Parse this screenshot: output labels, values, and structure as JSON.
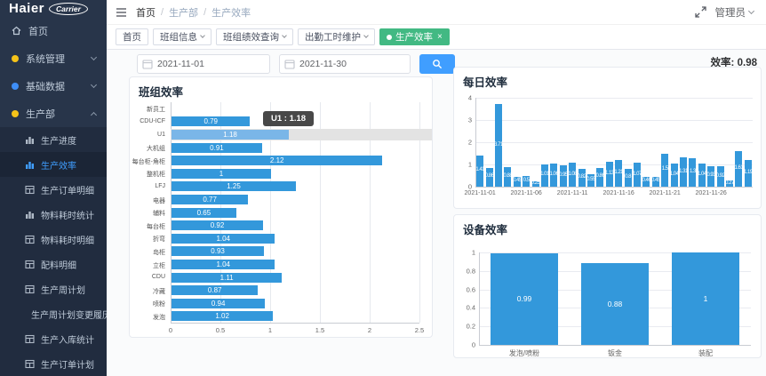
{
  "app": {
    "logo_primary": "Haier",
    "logo_secondary": "Carrier"
  },
  "topbar": {
    "breadcrumb": [
      "首页",
      "生产部",
      "生产效率"
    ],
    "user_label": "管理员"
  },
  "tabs": [
    {
      "key": "home",
      "label": "首页",
      "active": false,
      "caret": false,
      "closable": false
    },
    {
      "key": "team-info",
      "label": "班组信息",
      "active": false,
      "caret": true,
      "closable": false
    },
    {
      "key": "team-performance-query",
      "label": "班组绩效查询",
      "active": false,
      "caret": true,
      "closable": false
    },
    {
      "key": "attendance-hours",
      "label": "出勤工时维护",
      "active": false,
      "caret": true,
      "closable": false
    },
    {
      "key": "production-efficiency",
      "label": "生产效率",
      "active": true,
      "caret": false,
      "closable": true
    }
  ],
  "filters": {
    "date_start": "2021-11-01",
    "date_end": "2021-11-30"
  },
  "summary": {
    "label": "效率:",
    "value": "0.98"
  },
  "sidebar": {
    "items": [
      {
        "key": "home",
        "label": "首页",
        "icon": "home-icon",
        "chevron": null,
        "dot_color": null
      },
      {
        "key": "system-mgmt",
        "label": "系统管理",
        "icon": "system-dot-icon",
        "chevron": "down",
        "dot_color": "#f5c319"
      },
      {
        "key": "basic-data",
        "label": "基础数据",
        "icon": "data-dot-icon",
        "chevron": "down",
        "dot_color": "#3e8ef7"
      },
      {
        "key": "production-dept",
        "label": "生产部",
        "icon": "production-dot-icon",
        "chevron": "up",
        "dot_color": "#f5c319"
      }
    ],
    "subitems": [
      {
        "key": "production-progress",
        "label": "生产进度",
        "icon": "bar-chart-icon",
        "active": false
      },
      {
        "key": "production-efficiency",
        "label": "生产效率",
        "icon": "bar-chart-icon",
        "active": true
      },
      {
        "key": "production-order-detail",
        "label": "生产订单明细",
        "icon": "table-icon",
        "active": false
      },
      {
        "key": "material-time-stats",
        "label": "物料耗时统计",
        "icon": "bar-chart-icon",
        "active": false
      },
      {
        "key": "material-time-detail",
        "label": "物料耗时明细",
        "icon": "table-icon",
        "active": false
      },
      {
        "key": "batching-detail",
        "label": "配料明细",
        "icon": "table-icon",
        "active": false
      },
      {
        "key": "production-week-plan",
        "label": "生产周计划",
        "icon": "table-icon",
        "active": false
      },
      {
        "key": "week-plan-change-history",
        "label": "生产周计划变更履历",
        "icon": "table-icon",
        "active": false
      },
      {
        "key": "production-inbound-stats",
        "label": "生产入库统计",
        "icon": "table-icon",
        "active": false
      },
      {
        "key": "production-order-plan",
        "label": "生产订单计划",
        "icon": "table-icon",
        "active": false
      }
    ]
  },
  "colors": {
    "accent_blue": "#409eff",
    "bar_blue": "#3398db",
    "active_tab_green": "#42b983",
    "sidebar_bg": "#28354a",
    "sidebar_sub_bg": "#212c3f",
    "highlight_band": "#e3e3e3",
    "highlight_bar": "#7ab6e8",
    "tooltip_bg": "#3a3a3a"
  },
  "chart_data": [
    {
      "type": "bar",
      "orientation": "horizontal",
      "title": "班组效率",
      "categories": [
        "新员工",
        "CDU-ICF",
        "U1",
        "大机组",
        "每台柜-角柜",
        "整机柜",
        "LFJ",
        "电器",
        "辅料",
        "每台柜",
        "折弯",
        "岛柜",
        "立柜",
        "CDU",
        "冷藏",
        "喷粉",
        "发泡"
      ],
      "values": [
        0,
        0.79,
        1.18,
        0.91,
        2.12,
        1,
        1.25,
        0.77,
        0.65,
        0.92,
        1.04,
        0.93,
        1.04,
        1.11,
        0.87,
        0.94,
        1.02
      ],
      "xlim": [
        0,
        2.5
      ],
      "xticks": [
        "0",
        "0.5",
        "1",
        "1.5",
        "2",
        "2.5"
      ],
      "grid": true,
      "legend": false,
      "highlight": {
        "category": "U1",
        "value": 1.18,
        "tooltip_text": "U1 : 1.18"
      }
    },
    {
      "type": "bar",
      "orientation": "vertical",
      "title": "每日效率",
      "categories": [
        "2021-11-01",
        "2021-11-02",
        "2021-11-03",
        "2021-11-04",
        "2021-11-05",
        "2021-11-06",
        "2021-11-07",
        "2021-11-08",
        "2021-11-09",
        "2021-11-10",
        "2021-11-11",
        "2021-11-12",
        "2021-11-13",
        "2021-11-14",
        "2021-11-15",
        "2021-11-16",
        "2021-11-17",
        "2021-11-18",
        "2021-11-19",
        "2021-11-20",
        "2021-11-21",
        "2021-11-22",
        "2021-11-23",
        "2021-11-24",
        "2021-11-25",
        "2021-11-26",
        "2021-11-27",
        "2021-11-28",
        "2021-11-29",
        "2021-11-30"
      ],
      "values": [
        1.41,
        0.86,
        3.71,
        0.88,
        0.45,
        0.5,
        0.25,
        1.01,
        1.06,
        0.95,
        1.08,
        0.82,
        0.55,
        0.86,
        1.13,
        1.21,
        0.8,
        1.07,
        0.46,
        0.45,
        1.5,
        1.04,
        1.31,
        1.3,
        1.04,
        0.93,
        0.92,
        0.27,
        1.61,
        1.19
      ],
      "ylim": [
        0,
        4
      ],
      "yticks": [
        "0",
        "1",
        "2",
        "3",
        "4"
      ],
      "xticks_shown": [
        "2021-11-01",
        "2021-11-06",
        "2021-11-11",
        "2021-11-16",
        "2021-11-21",
        "2021-11-26"
      ],
      "grid": true,
      "legend": false
    },
    {
      "type": "bar",
      "orientation": "vertical",
      "title": "设备效率",
      "categories": [
        "发泡/喷粉",
        "钣金",
        "装配"
      ],
      "values": [
        0.99,
        0.88,
        1
      ],
      "ylim": [
        0,
        1
      ],
      "yticks": [
        "0",
        "0.2",
        "0.4",
        "0.6",
        "0.8",
        "1"
      ],
      "grid": true,
      "legend": false
    }
  ]
}
